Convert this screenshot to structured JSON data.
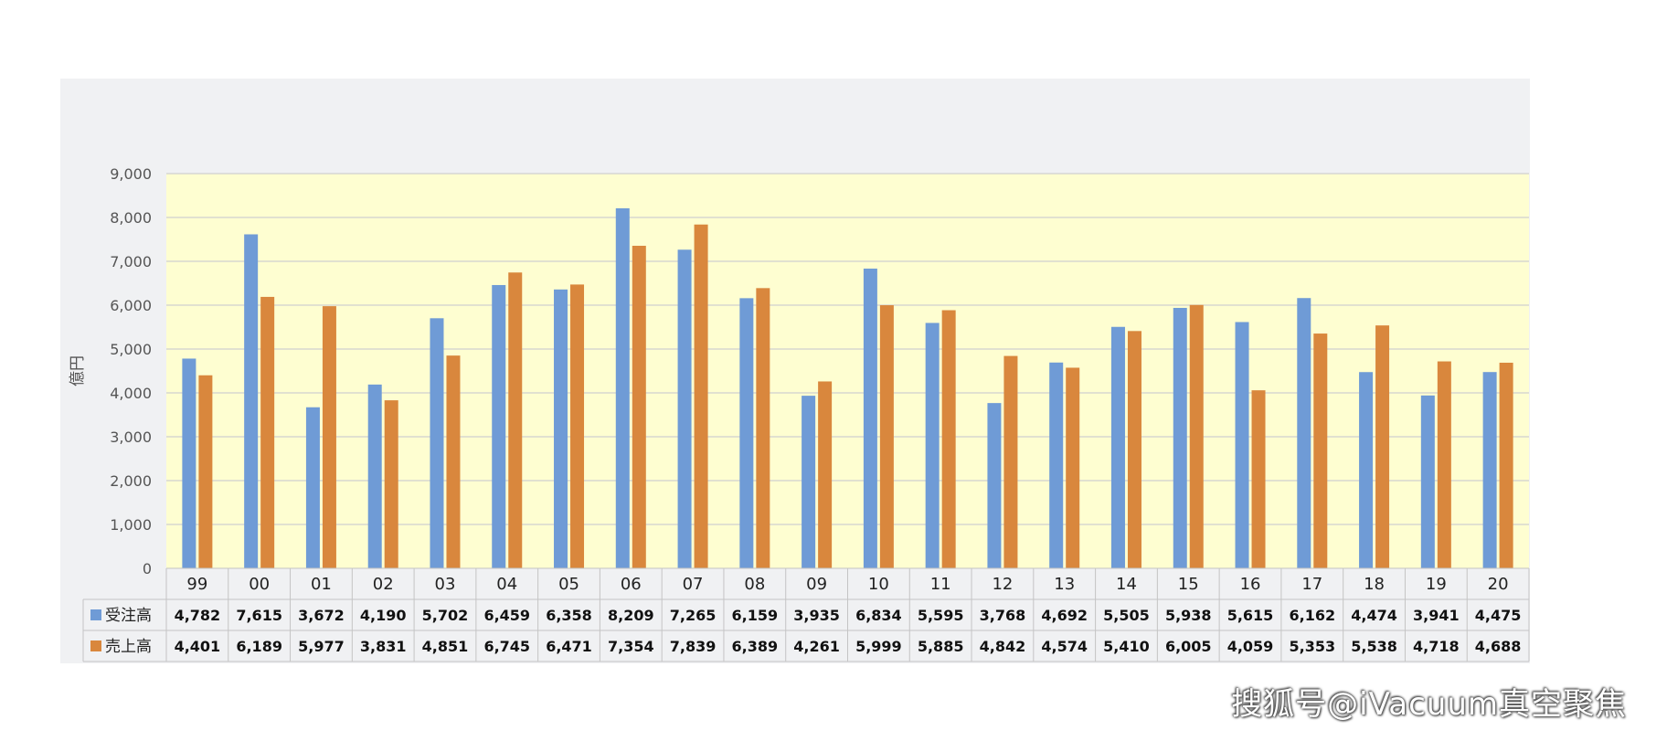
{
  "chart_data": {
    "type": "bar",
    "ylabel": "億円",
    "ylim": [
      0,
      9000
    ],
    "yticks": [
      "0",
      "1,000",
      "2,000",
      "3,000",
      "4,000",
      "5,000",
      "6,000",
      "7,000",
      "8,000",
      "9,000"
    ],
    "categories": [
      "99",
      "00",
      "01",
      "02",
      "03",
      "04",
      "05",
      "06",
      "07",
      "08",
      "09",
      "10",
      "11",
      "12",
      "13",
      "14",
      "15",
      "16",
      "17",
      "18",
      "19",
      "20"
    ],
    "series": [
      {
        "name": "受注高",
        "color": "#6f9bd6",
        "values": [
          4782,
          7615,
          3672,
          4190,
          5702,
          6459,
          6358,
          8209,
          7265,
          6159,
          3935,
          6834,
          5595,
          3768,
          4692,
          5505,
          5938,
          5615,
          6162,
          4474,
          3941,
          4475
        ],
        "labels": [
          "4,782",
          "7,615",
          "3,672",
          "4,190",
          "5,702",
          "6,459",
          "6,358",
          "8,209",
          "7,265",
          "6,159",
          "3,935",
          "6,834",
          "5,595",
          "3,768",
          "4,692",
          "5,505",
          "5,938",
          "5,615",
          "6,162",
          "4,474",
          "3,941",
          "4,475"
        ]
      },
      {
        "name": "売上高",
        "color": "#d9873d",
        "values": [
          4401,
          6189,
          5977,
          3831,
          4851,
          6745,
          6471,
          7354,
          7839,
          6389,
          4261,
          5999,
          5885,
          4842,
          4574,
          5410,
          6005,
          4059,
          5353,
          5538,
          4718,
          4688
        ],
        "labels": [
          "4,401",
          "6,189",
          "5,977",
          "3,831",
          "4,851",
          "6,745",
          "6,471",
          "7,354",
          "7,839",
          "6,389",
          "4,261",
          "5,999",
          "5,885",
          "4,842",
          "4,574",
          "5,410",
          "6,005",
          "4,059",
          "5,353",
          "5,538",
          "4,718",
          "4,688"
        ]
      }
    ],
    "grid": true,
    "legend": "data-table"
  },
  "colors": {
    "panel_bg": "#f0f1f3",
    "plot_bg": "#fefed1",
    "grid": "#d0d0d0"
  },
  "watermark": "搜狐号@iVacuum真空聚焦"
}
